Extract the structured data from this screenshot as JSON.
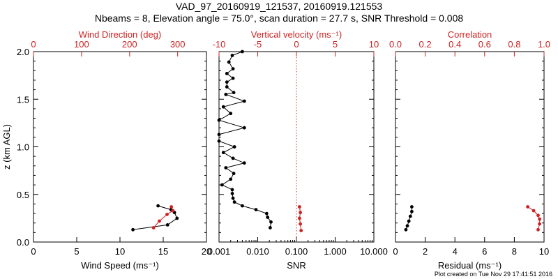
{
  "header": {
    "title_line1": "VAD_97_20160919_121537, 20160919.121553",
    "title_line2": "Nbeams = 8, Elevation angle = 75.0°, scan duration = 27.7 s, SNR Threshold = 0.008"
  },
  "footer": {
    "text": "Plot created on Tue Nov 29 17:41:51 2016"
  },
  "colors": {
    "axis": "#000000",
    "red": "#cc2222"
  },
  "chart_data": [
    {
      "type": "line",
      "id": "wind",
      "xlabel": "Wind Speed (ms⁻¹)",
      "ylabel": "z (km AGL)",
      "xlim": [
        0,
        20
      ],
      "ylim": [
        0,
        2.0
      ],
      "xticks": [
        0,
        5,
        10,
        15,
        20
      ],
      "yticks": [
        0.0,
        0.5,
        1.0,
        1.5,
        2.0
      ],
      "top_axis": {
        "label": "Wind Direction (deg)",
        "lim": [
          0,
          360
        ],
        "ticks": [
          0,
          100,
          200,
          300
        ]
      },
      "series": [
        {
          "axis": "bottom",
          "color": "black",
          "x": [
            11.5,
            15.5,
            16.6,
            16.3,
            15.9,
            14.4
          ],
          "y": [
            0.13,
            0.18,
            0.25,
            0.31,
            0.34,
            0.38
          ]
        },
        {
          "axis": "top",
          "color": "red",
          "x": [
            250,
            262,
            278,
            290,
            287
          ],
          "y": [
            0.15,
            0.22,
            0.29,
            0.33,
            0.37
          ]
        }
      ]
    },
    {
      "type": "line",
      "id": "snr",
      "xlabel": "SNR",
      "ylim": [
        0,
        2.0
      ],
      "xscale": "log",
      "xlim": [
        0.001,
        10.0
      ],
      "xticks": [
        0.001,
        0.01,
        0.1,
        1.0,
        10.0
      ],
      "xticklabels": [
        "0.001",
        "0.010",
        "0.100",
        "1.000",
        "10.000"
      ],
      "top_axis": {
        "label": "Vertical velocity (ms⁻¹)",
        "lim": [
          -10,
          10
        ],
        "ticks": [
          -10,
          -5,
          0,
          5,
          10
        ],
        "zero_line": true
      },
      "series": [
        {
          "axis": "bottom",
          "color": "black",
          "x": [
            0.004,
            0.0022,
            0.0018,
            0.0023,
            0.0016,
            0.0023,
            0.0016,
            0.0016,
            0.0024,
            0.0015,
            0.0045,
            0.0013,
            0.002,
            0.001,
            0.0045,
            0.001,
            0.001,
            0.0025,
            0.0013,
            0.0023,
            0.0045,
            0.0015,
            0.0024,
            0.002,
            0.0012,
            0.0022,
            0.0022,
            0.0023,
            0.0025,
            0.004,
            0.009,
            0.017,
            0.018,
            0.022,
            0.021
          ],
          "y": [
            2.0,
            1.96,
            1.89,
            1.82,
            1.77,
            1.72,
            1.68,
            1.63,
            1.57,
            1.55,
            1.48,
            1.42,
            1.35,
            1.28,
            1.2,
            1.13,
            1.06,
            1.0,
            0.94,
            0.88,
            0.83,
            0.78,
            0.72,
            0.66,
            0.6,
            0.55,
            0.51,
            0.46,
            0.42,
            0.38,
            0.34,
            0.3,
            0.26,
            0.21,
            0.15
          ]
        },
        {
          "axis": "top",
          "color": "red",
          "x": [
            0.6,
            0.5,
            0.4,
            0.5,
            0.4
          ],
          "y": [
            0.12,
            0.19,
            0.25,
            0.31,
            0.37
          ]
        }
      ]
    },
    {
      "type": "line",
      "id": "resid",
      "xlabel": "Residual (ms⁻¹)",
      "ylim": [
        0,
        2.0
      ],
      "xlim": [
        0,
        10
      ],
      "xticks": [
        0,
        2,
        4,
        6,
        8,
        10
      ],
      "top_axis": {
        "label": "Correlation",
        "lim": [
          0.0,
          1.0
        ],
        "ticks": [
          0.0,
          0.2,
          0.4,
          0.6,
          0.8,
          1.0
        ],
        "tickformat": 1
      },
      "series": [
        {
          "axis": "bottom",
          "color": "black",
          "x": [
            0.7,
            0.8,
            0.9,
            1.0,
            1.1,
            1.1
          ],
          "y": [
            0.13,
            0.17,
            0.22,
            0.27,
            0.32,
            0.37
          ]
        },
        {
          "axis": "top",
          "color": "red",
          "x": [
            0.96,
            0.97,
            0.97,
            0.96,
            0.93,
            0.89
          ],
          "y": [
            0.13,
            0.19,
            0.24,
            0.28,
            0.33,
            0.37
          ]
        }
      ]
    }
  ]
}
